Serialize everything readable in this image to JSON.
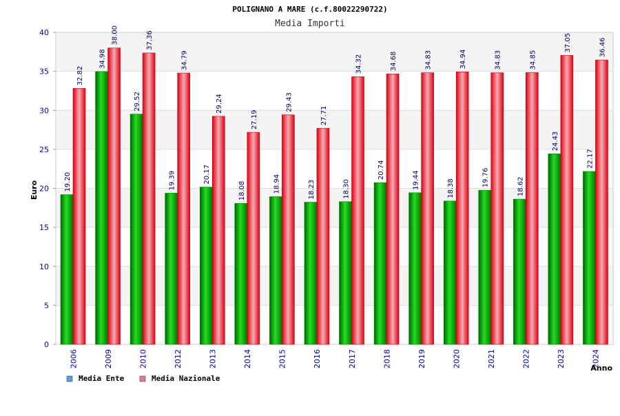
{
  "chart_data": {
    "type": "bar",
    "title": "POLIGNANO A MARE (c.f.80022290722)",
    "subtitle": "Media Importi",
    "xlabel": "Anno",
    "ylabel": "Euro",
    "ylim": [
      0,
      40
    ],
    "yticks": [
      "0",
      "5",
      "10",
      "15",
      "20",
      "25",
      "30",
      "35",
      "40"
    ],
    "grid": true,
    "legend_position": "bottom-left",
    "categories": [
      "2006",
      "2009",
      "2010",
      "2012",
      "2013",
      "2014",
      "2015",
      "2016",
      "2017",
      "2018",
      "2019",
      "2020",
      "2021",
      "2022",
      "2023",
      "2024"
    ],
    "series": [
      {
        "name": "Media Ente",
        "color": "#00bb00",
        "legend_color": "#5aa0e6",
        "values": [
          19.2,
          34.98,
          29.52,
          19.39,
          20.17,
          18.08,
          18.94,
          18.23,
          18.3,
          20.74,
          19.44,
          18.38,
          19.76,
          18.62,
          24.43,
          22.17
        ],
        "labels": [
          "19.20",
          "34.98",
          "29.52",
          "19.39",
          "20.17",
          "18.08",
          "18.94",
          "18.23",
          "18.30",
          "20.74",
          "19.44",
          "18.38",
          "19.76",
          "18.62",
          "24.43",
          "22.17"
        ]
      },
      {
        "name": "Media Nazionale",
        "color": "#ee1122",
        "legend_color": "#e07aa0",
        "values": [
          32.82,
          38.0,
          37.36,
          34.79,
          29.24,
          27.19,
          29.43,
          27.71,
          34.32,
          34.68,
          34.83,
          34.94,
          34.83,
          34.85,
          37.05,
          36.46
        ],
        "labels": [
          "32.82",
          "38.00",
          "37.36",
          "34.79",
          "29.24",
          "27.19",
          "29.43",
          "27.71",
          "34.32",
          "34.68",
          "34.83",
          "34.94",
          "34.83",
          "34.85",
          "37.05",
          "36.46"
        ]
      }
    ]
  }
}
